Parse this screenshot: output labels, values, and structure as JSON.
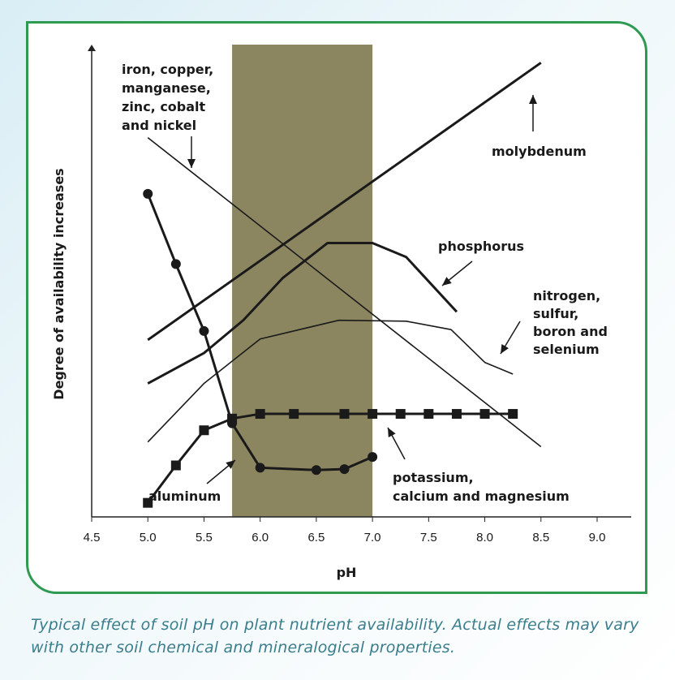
{
  "chart_data": {
    "type": "line",
    "xlabel": "pH",
    "ylabel": "Degree of availability increases",
    "xlim": [
      4.5,
      9.0
    ],
    "ylim": [
      0,
      10
    ],
    "x_ticks": [
      "4.5",
      "5.0",
      "5.5",
      "6.0",
      "6.5",
      "7.0",
      "7.5",
      "8.0",
      "8.5",
      "9.0"
    ],
    "band": {
      "x_start": 5.75,
      "x_end": 7.0,
      "color": "#8c8660"
    },
    "series": [
      {
        "name": "molybdenum",
        "style": "thick",
        "marker": "none",
        "points": [
          [
            5.0,
            3.78
          ],
          [
            8.5,
            9.7
          ]
        ],
        "label": [
          "molybdenum"
        ]
      },
      {
        "name": "iron, copper, manganese, zinc, cobalt and nickel",
        "style": "thin",
        "marker": "none",
        "points": [
          [
            5.0,
            8.1
          ],
          [
            8.5,
            1.5
          ]
        ],
        "label": [
          "iron, copper,",
          "manganese,",
          "zinc, cobalt",
          "and nickel"
        ]
      },
      {
        "name": "phosphorus",
        "style": "thick",
        "marker": "none",
        "points": [
          [
            5.0,
            2.85
          ],
          [
            5.5,
            3.5
          ],
          [
            5.85,
            4.2
          ],
          [
            6.2,
            5.1
          ],
          [
            6.6,
            5.85
          ],
          [
            7.0,
            5.85
          ],
          [
            7.3,
            5.55
          ],
          [
            7.75,
            4.38
          ]
        ],
        "label": [
          "phosphorus"
        ]
      },
      {
        "name": "nitrogen, sulfur, boron and selenium",
        "style": "thin",
        "marker": "none",
        "points": [
          [
            5.0,
            1.6
          ],
          [
            5.5,
            2.85
          ],
          [
            6.0,
            3.8
          ],
          [
            6.7,
            4.2
          ],
          [
            7.3,
            4.18
          ],
          [
            7.7,
            4.0
          ],
          [
            8.0,
            3.3
          ],
          [
            8.25,
            3.05
          ]
        ],
        "label": [
          "nitrogen,",
          "sulfur,",
          "boron and",
          "selenium"
        ]
      },
      {
        "name": "potassium, calcium and magnesium",
        "style": "thick",
        "marker": "square",
        "points": [
          [
            5.0,
            0.3
          ],
          [
            5.25,
            1.1
          ],
          [
            5.5,
            1.85
          ],
          [
            5.75,
            2.1
          ],
          [
            6.0,
            2.2
          ],
          [
            6.3,
            2.2
          ],
          [
            6.75,
            2.2
          ],
          [
            7.0,
            2.2
          ],
          [
            7.25,
            2.2
          ],
          [
            7.5,
            2.2
          ],
          [
            7.75,
            2.2
          ],
          [
            8.0,
            2.2
          ],
          [
            8.25,
            2.2
          ]
        ],
        "label": [
          "potassium,",
          "calcium and magnesium"
        ]
      },
      {
        "name": "aluminum",
        "style": "thick",
        "marker": "circle",
        "points": [
          [
            5.0,
            6.9
          ],
          [
            5.25,
            5.4
          ],
          [
            5.5,
            3.97
          ],
          [
            5.75,
            2.0
          ],
          [
            6.0,
            1.05
          ],
          [
            6.5,
            1.0
          ],
          [
            6.75,
            1.02
          ],
          [
            7.0,
            1.28
          ]
        ],
        "label": [
          "aluminum"
        ]
      }
    ]
  },
  "caption_lines": [
    "Typical effect of soil pH on plant nutrient availability. Actual effects may vary",
    "with other soil chemical and mineralogical properties."
  ]
}
